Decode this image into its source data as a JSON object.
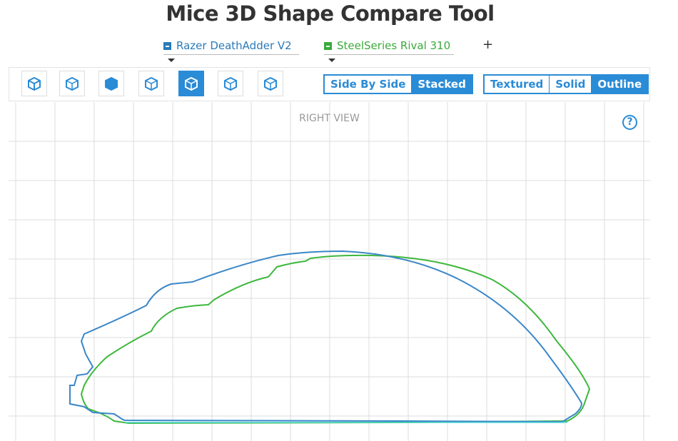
{
  "header": {
    "title": "Mice 3D Shape Compare Tool"
  },
  "selectors": [
    {
      "label": "Razer DeathAdder V2"
    },
    {
      "label": "SteelSeries Rival 310"
    }
  ],
  "add_button": "+",
  "toolbar": {
    "layout_buttons": [
      "Side By Side",
      "Stacked"
    ],
    "render_buttons": [
      "Textured",
      "Solid",
      "Outline"
    ]
  },
  "viewport": {
    "view_label": "RIGHT VIEW",
    "help": "?"
  }
}
